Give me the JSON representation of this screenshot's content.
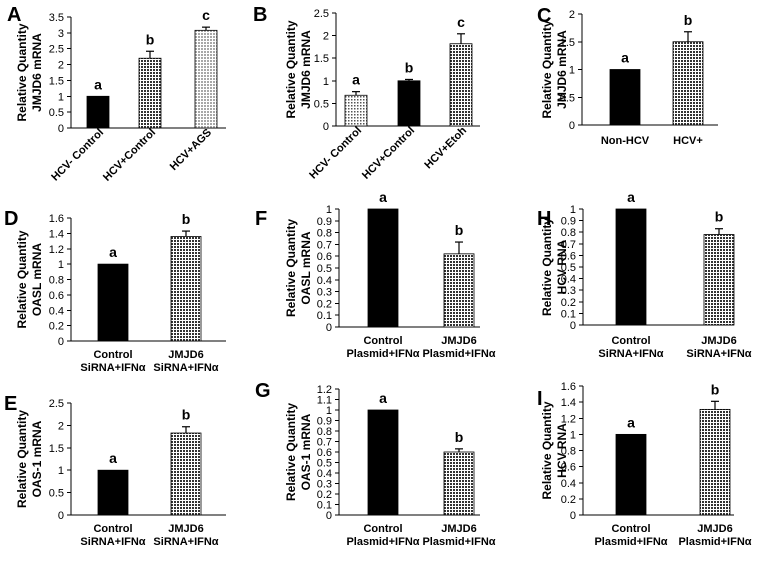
{
  "colors": {
    "solid": "#000000",
    "dark_pattern": "#666666",
    "light_pattern": "#c8c8c8",
    "dotted": "#9a9a9a"
  },
  "chart_data": [
    {
      "panel": "A",
      "type": "bar",
      "ylabel": [
        "Relative Quantity",
        "JMJD6 mRNA"
      ],
      "yticks": [
        "0",
        "0.5",
        "1",
        "1.5",
        "2",
        "2.5",
        "3",
        "3.5"
      ],
      "ylim": [
        0,
        3.5
      ],
      "tick_step": 0.5,
      "label_style": "rotated",
      "categories": [
        [
          "HCV- Control"
        ],
        [
          "HCV+Control"
        ],
        [
          "HCV+AGS"
        ]
      ],
      "values": [
        1.0,
        2.2,
        3.08
      ],
      "errors": [
        0.0,
        0.22,
        0.1
      ],
      "sig": [
        "a",
        "b",
        "c"
      ],
      "fills": [
        "solid",
        "dark",
        "light"
      ]
    },
    {
      "panel": "B",
      "type": "bar",
      "ylabel": [
        "Relative Quantity",
        "JMJD6 mRNA"
      ],
      "yticks": [
        "0",
        "0.5",
        "1",
        "1.5",
        "2",
        "2.5"
      ],
      "ylim": [
        0,
        2.5
      ],
      "tick_step": 0.5,
      "label_style": "rotated",
      "categories": [
        [
          "HCV- Control"
        ],
        [
          "HCV+Control"
        ],
        [
          "HCV+Etoh"
        ]
      ],
      "values": [
        0.68,
        1.0,
        1.82
      ],
      "errors": [
        0.08,
        0.03,
        0.22
      ],
      "sig": [
        "a",
        "b",
        "c"
      ],
      "fills": [
        "dotted",
        "solid",
        "dark"
      ]
    },
    {
      "panel": "C",
      "type": "bar",
      "ylabel": [
        "Relative Quantity",
        "JMJD6 mRNA"
      ],
      "yticks": [
        "0",
        "0.5",
        "1",
        "1.5",
        "2"
      ],
      "ylim": [
        0,
        2
      ],
      "tick_step": 0.5,
      "label_style": "horizontal",
      "categories": [
        [
          "Non-HCV"
        ],
        [
          "HCV+"
        ]
      ],
      "values": [
        1.0,
        1.5
      ],
      "errors": [
        0.0,
        0.18
      ],
      "sig": [
        "a",
        "b"
      ],
      "fills": [
        "solid",
        "dark"
      ]
    },
    {
      "panel": "D",
      "type": "bar",
      "ylabel": [
        "Relative Quantity",
        "OASL mRNA"
      ],
      "yticks": [
        "0",
        "0.2",
        "0.4",
        "0.6",
        "0.8",
        "1",
        "1.2",
        "1.4",
        "1.6"
      ],
      "ylim": [
        0,
        1.6
      ],
      "tick_step": 0.2,
      "label_style": "horizontal",
      "categories": [
        [
          "Control",
          "SiRNA+IFNα"
        ],
        [
          "JMJD6",
          "SiRNA+IFNα"
        ]
      ],
      "values": [
        1.0,
        1.36
      ],
      "errors": [
        0.0,
        0.07
      ],
      "sig": [
        "a",
        "b"
      ],
      "fills": [
        "solid",
        "dark"
      ]
    },
    {
      "panel": "F",
      "type": "bar",
      "ylabel": [
        "Relative Quantity",
        "OASL mRNA"
      ],
      "yticks": [
        "0",
        "0.1",
        "0.2",
        "0.3",
        "0.4",
        "0.5",
        "0.6",
        "0.7",
        "0.8",
        "0.9",
        "1"
      ],
      "ylim": [
        0,
        1
      ],
      "tick_step": 0.1,
      "label_style": "horizontal",
      "categories": [
        [
          "Control",
          "Plasmid+IFNα"
        ],
        [
          "JMJD6",
          "Plasmid+IFNα"
        ]
      ],
      "values": [
        1.0,
        0.62
      ],
      "errors": [
        0.0,
        0.1
      ],
      "sig": [
        "a",
        "b"
      ],
      "fills": [
        "solid",
        "dark"
      ]
    },
    {
      "panel": "H",
      "type": "bar",
      "ylabel": [
        "Relative Quantity",
        "HCV RNA"
      ],
      "yticks": [
        "0",
        "0.1",
        "0.2",
        "0.3",
        "0.4",
        "0.5",
        "0.6",
        "0.7",
        "0.8",
        "0.9",
        "1"
      ],
      "ylim": [
        0,
        1
      ],
      "tick_step": 0.1,
      "label_style": "horizontal",
      "categories": [
        [
          "Control",
          "SiRNA+IFNα"
        ],
        [
          "JMJD6",
          "SiRNA+IFNα"
        ]
      ],
      "values": [
        1.0,
        0.78
      ],
      "errors": [
        0.0,
        0.05
      ],
      "sig": [
        "a",
        "b"
      ],
      "fills": [
        "solid",
        "dark"
      ]
    },
    {
      "panel": "E",
      "type": "bar",
      "ylabel": [
        "Relative Quantity",
        "OAS-1 mRNA"
      ],
      "yticks": [
        "0",
        "0.5",
        "1",
        "1.5",
        "2",
        "2.5"
      ],
      "ylim": [
        0,
        2.5
      ],
      "tick_step": 0.5,
      "label_style": "horizontal",
      "categories": [
        [
          "Control",
          "SiRNA+IFNα"
        ],
        [
          "JMJD6",
          "SiRNA+IFNα"
        ]
      ],
      "values": [
        1.0,
        1.83
      ],
      "errors": [
        0.0,
        0.14
      ],
      "sig": [
        "a",
        "b"
      ],
      "fills": [
        "solid",
        "dark"
      ]
    },
    {
      "panel": "G",
      "type": "bar",
      "ylabel": [
        "Relative Quantity",
        "OAS-1 mRNA"
      ],
      "yticks": [
        "0",
        "0.1",
        "0.2",
        "0.3",
        "0.4",
        "0.5",
        "0.6",
        "0.7",
        "0.8",
        "0.9",
        "1",
        "1.1",
        "1.2"
      ],
      "ylim": [
        0,
        1.2
      ],
      "tick_step": 0.1,
      "label_style": "horizontal",
      "categories": [
        [
          "Control",
          "Plasmid+IFNα"
        ],
        [
          "JMJD6",
          "Plasmid+IFNα"
        ]
      ],
      "values": [
        1.0,
        0.6
      ],
      "errors": [
        0.0,
        0.03
      ],
      "sig": [
        "a",
        "b"
      ],
      "fills": [
        "solid",
        "dark"
      ]
    },
    {
      "panel": "I",
      "type": "bar",
      "ylabel": [
        "Relative Quantity",
        "HCV RNA"
      ],
      "yticks": [
        "0",
        "0.2",
        "0.4",
        "0.6",
        "0.8",
        "1",
        "1.2",
        "1.4",
        "1.6"
      ],
      "ylim": [
        0,
        1.6
      ],
      "tick_step": 0.2,
      "label_style": "horizontal",
      "categories": [
        [
          "Control",
          "Plasmid+IFNα"
        ],
        [
          "JMJD6",
          "Plasmid+IFNα"
        ]
      ],
      "values": [
        1.0,
        1.31
      ],
      "errors": [
        0.0,
        0.1
      ],
      "sig": [
        "a",
        "b"
      ],
      "fills": [
        "solid",
        "dark"
      ]
    }
  ]
}
